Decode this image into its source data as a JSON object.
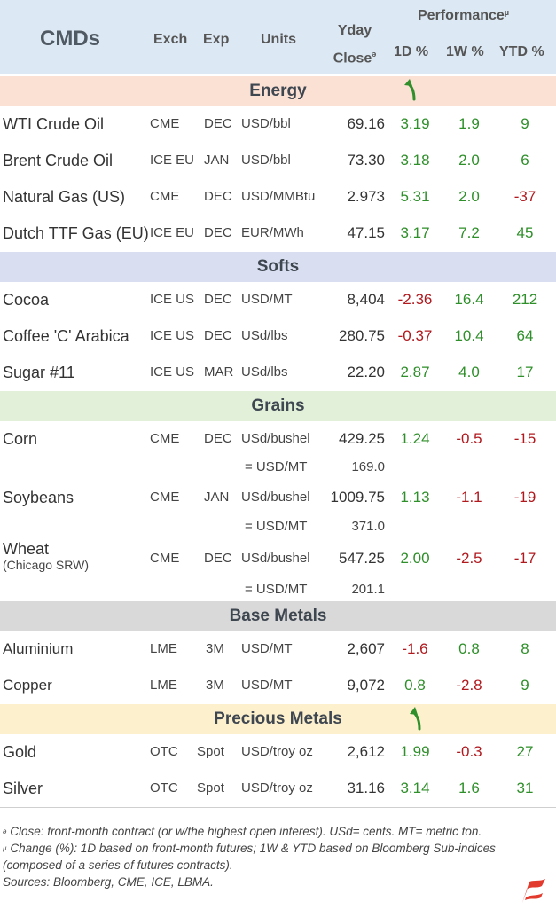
{
  "header": {
    "title": "CMDs",
    "exch": "Exch",
    "exp": "Exp",
    "units": "Units",
    "yday_line1": "Yday",
    "yday_line2": "Close",
    "yday_mark": "ə",
    "performance": "Performance",
    "performance_mark": "µ",
    "col_1d": "1D %",
    "col_1w": "1W %",
    "col_ytd": "YTD %"
  },
  "sections": {
    "energy": "Energy",
    "softs": "Softs",
    "grains": "Grains",
    "base": "Base Metals",
    "precious": "Precious Metals"
  },
  "colors": {
    "header_bg": "#dce8f3",
    "energy_bg": "#fbe0d4",
    "softs_bg": "#d9dff1",
    "grains_bg": "#e2efd9",
    "base_bg": "#d9d9d9",
    "precious_bg": "#fdf0cc",
    "positive": "#2f8f2a",
    "negative": "#b0191e"
  },
  "icons": {
    "trend_arrow": "curved-up-arrow-icon",
    "logo": "brand-flag-logo-icon"
  },
  "rows": {
    "wti": {
      "name": "WTI Crude Oil",
      "exch": "CME",
      "exp": "DEC",
      "units": "USD/bbl",
      "close": "69.16",
      "d1": "3.19",
      "w1": "1.9",
      "ytd": "9"
    },
    "brent": {
      "name": "Brent Crude Oil",
      "exch": "ICE EU",
      "exp": "JAN",
      "units": "USD/bbl",
      "close": "73.30",
      "d1": "3.18",
      "w1": "2.0",
      "ytd": "6"
    },
    "natgas": {
      "name": "Natural Gas (US)",
      "exch": "CME",
      "exp": "DEC",
      "units": "USD/MMBtu",
      "close": "2.973",
      "d1": "5.31",
      "w1": "2.0",
      "ytd": "-37"
    },
    "ttf": {
      "name": "Dutch TTF Gas (EU)",
      "exch": "ICE EU",
      "exp": "DEC",
      "units": "EUR/MWh",
      "close": "47.15",
      "d1": "3.17",
      "w1": "7.2",
      "ytd": "45"
    },
    "cocoa": {
      "name": "Cocoa",
      "exch": "ICE US",
      "exp": "DEC",
      "units": "USD/MT",
      "close": "8,404",
      "d1": "-2.36",
      "w1": "16.4",
      "ytd": "212"
    },
    "coffee": {
      "name": "Coffee 'C' Arabica",
      "exch": "ICE US",
      "exp": "DEC",
      "units": "USd/lbs",
      "close": "280.75",
      "d1": "-0.37",
      "w1": "10.4",
      "ytd": "64"
    },
    "sugar": {
      "name": "Sugar #11",
      "exch": "ICE US",
      "exp": "MAR",
      "units": "USd/lbs",
      "close": "22.20",
      "d1": "2.87",
      "w1": "4.0",
      "ytd": "17"
    },
    "corn": {
      "name": "Corn",
      "exch": "CME",
      "exp": "DEC",
      "units": "USd/bushel",
      "close": "429.25",
      "d1": "1.24",
      "w1": "-0.5",
      "ytd": "-15",
      "alt_units": "= USD/MT",
      "alt_close": "169.0"
    },
    "soy": {
      "name": "Soybeans",
      "exch": "CME",
      "exp": "JAN",
      "units": "USd/bushel",
      "close": "1009.75",
      "d1": "1.13",
      "w1": "-1.1",
      "ytd": "-19",
      "alt_units": "= USD/MT",
      "alt_close": "371.0"
    },
    "wheat": {
      "name": "Wheat",
      "name_sub": "(Chicago SRW)",
      "exch": "CME",
      "exp": "DEC",
      "units": "USd/bushel",
      "close": "547.25",
      "d1": "2.00",
      "w1": "-2.5",
      "ytd": "-17",
      "alt_units": "= USD/MT",
      "alt_close": "201.1"
    },
    "alu": {
      "name": "Aluminium",
      "exch": "LME",
      "exp": "3M",
      "units": "USD/MT",
      "close": "2,607",
      "d1": "-1.6",
      "w1": "0.8",
      "ytd": "8"
    },
    "copper": {
      "name": "Copper",
      "exch": "LME",
      "exp": "3M",
      "units": "USD/MT",
      "close": "9,072",
      "d1": "0.8",
      "w1": "-2.8",
      "ytd": "9"
    },
    "gold": {
      "name": "Gold",
      "exch": "OTC",
      "exp": "Spot",
      "units": "USD/troy oz",
      "close": "2,612",
      "d1": "1.99",
      "w1": "-0.3",
      "ytd": "27"
    },
    "silver": {
      "name": "Silver",
      "exch": "OTC",
      "exp": "Spot",
      "units": "USD/troy oz",
      "close": "31.16",
      "d1": "3.14",
      "w1": "1.6",
      "ytd": "31"
    }
  },
  "footnotes": {
    "mark1": "ə",
    "note1": " Close: front-month contract (or w/the highest open interest). USd= cents. MT= metric ton.",
    "mark2": "µ",
    "note2": " Change (%): 1D based on front-month futures; 1W & YTD based on Bloomberg Sub-indices (composed of a series of futures contracts).",
    "sources": "Sources: Bloomberg, CME, ICE, LBMA."
  }
}
